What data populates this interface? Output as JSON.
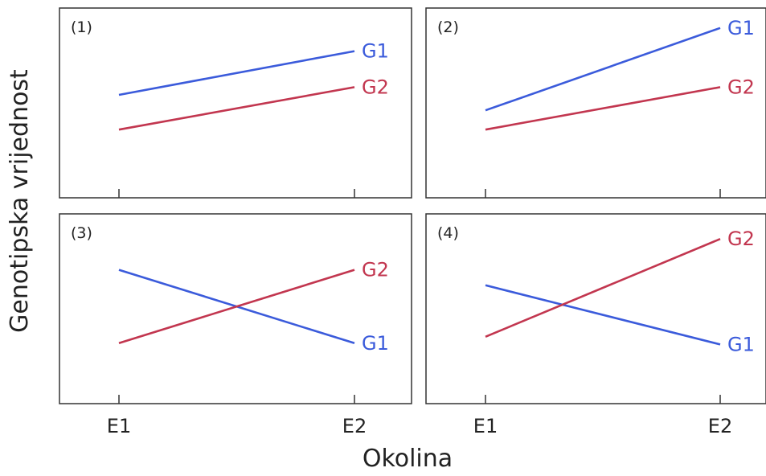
{
  "figure": {
    "xlabel": "Okolina",
    "ylabel": "Genotipska vrijednost"
  },
  "colors": {
    "G1": "#3b5bdb",
    "G2": "#c2364f",
    "frame": "#333333"
  },
  "chart_data": [
    {
      "type": "line",
      "panel_label": "(1)",
      "categories": [
        "E1",
        "E2"
      ],
      "series": [
        {
          "name": "G1",
          "values": [
            0.5,
            0.84
          ]
        },
        {
          "name": "G2",
          "values": [
            0.23,
            0.56
          ]
        }
      ],
      "ylim": [
        0,
        1
      ],
      "grid": false,
      "show_tick_labels": false
    },
    {
      "type": "line",
      "panel_label": "(2)",
      "categories": [
        "E1",
        "E2"
      ],
      "series": [
        {
          "name": "G1",
          "values": [
            0.38,
            1.02
          ]
        },
        {
          "name": "G2",
          "values": [
            0.23,
            0.56
          ]
        }
      ],
      "ylim": [
        0,
        1
      ],
      "grid": false,
      "show_tick_labels": false
    },
    {
      "type": "line",
      "panel_label": "(3)",
      "categories": [
        "E1",
        "E2"
      ],
      "series": [
        {
          "name": "G1",
          "values": [
            0.74,
            0.17
          ]
        },
        {
          "name": "G2",
          "values": [
            0.17,
            0.74
          ]
        }
      ],
      "ylim": [
        0,
        1
      ],
      "grid": false,
      "show_tick_labels": true
    },
    {
      "type": "line",
      "panel_label": "(4)",
      "categories": [
        "E1",
        "E2"
      ],
      "series": [
        {
          "name": "G1",
          "values": [
            0.62,
            0.16
          ]
        },
        {
          "name": "G2",
          "values": [
            0.22,
            0.98
          ]
        }
      ],
      "ylim": [
        0,
        1
      ],
      "grid": false,
      "show_tick_labels": true
    }
  ]
}
